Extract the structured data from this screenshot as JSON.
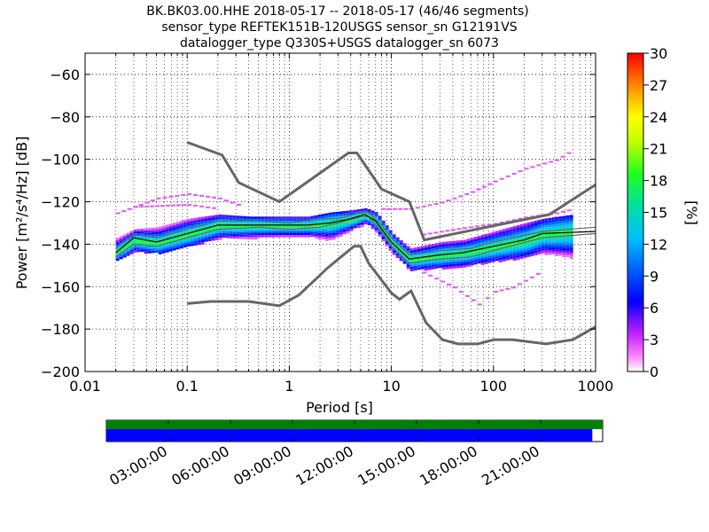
{
  "chart_data": {
    "type": "heatmap",
    "title_lines": [
      "BK.BK03.00.HHE   2018-05-17 -- 2018-05-17  (46/46 segments)",
      "sensor_type REFTEK151B-120USGS sensor_sn G12191VS",
      "datalogger_type Q330S+USGS datalogger_sn 6073"
    ],
    "xlabel": "Period [s]",
    "ylabel": "Power [m²/s⁴/Hz] [dB]",
    "x_scale": "log",
    "xlim": [
      0.01,
      1000
    ],
    "ylim": [
      -200,
      -50
    ],
    "x_ticks": [
      {
        "value": 0.01,
        "label": "0.01"
      },
      {
        "value": 0.1,
        "label": "0.1"
      },
      {
        "value": 1,
        "label": "1"
      },
      {
        "value": 10,
        "label": "10"
      },
      {
        "value": 100,
        "label": "100"
      },
      {
        "value": 1000,
        "label": "1000"
      }
    ],
    "y_ticks": [
      {
        "value": -60,
        "label": "−60"
      },
      {
        "value": -80,
        "label": "−80"
      },
      {
        "value": -100,
        "label": "−100"
      },
      {
        "value": -120,
        "label": "−120"
      },
      {
        "value": -140,
        "label": "−140"
      },
      {
        "value": -160,
        "label": "−160"
      },
      {
        "value": -180,
        "label": "−180"
      },
      {
        "value": -200,
        "label": "−200"
      }
    ],
    "grid": true,
    "colorbar": {
      "label": "[%]",
      "range": [
        0,
        30
      ],
      "ticks": [
        {
          "value": 0,
          "label": "0"
        },
        {
          "value": 3,
          "label": "3"
        },
        {
          "value": 6,
          "label": "6"
        },
        {
          "value": 9,
          "label": "9"
        },
        {
          "value": 12,
          "label": "12"
        },
        {
          "value": 15,
          "label": "15"
        },
        {
          "value": 18,
          "label": "18"
        },
        {
          "value": 21,
          "label": "21"
        },
        {
          "value": 24,
          "label": "24"
        },
        {
          "value": 27,
          "label": "27"
        },
        {
          "value": 30,
          "label": "30"
        }
      ]
    },
    "high_noise_model": [
      [
        0.1,
        -92
      ],
      [
        0.22,
        -98
      ],
      [
        0.32,
        -111
      ],
      [
        0.8,
        -120
      ],
      [
        3.8,
        -97
      ],
      [
        4.6,
        -97
      ],
      [
        8,
        -114
      ],
      [
        15,
        -120
      ],
      [
        21,
        -138
      ],
      [
        353,
        -126
      ],
      [
        1000,
        -112
      ]
    ],
    "low_noise_model": [
      [
        0.1,
        -168
      ],
      [
        0.17,
        -167
      ],
      [
        0.4,
        -167
      ],
      [
        0.8,
        -169
      ],
      [
        1.24,
        -164
      ],
      [
        2.4,
        -151
      ],
      [
        4.3,
        -141
      ],
      [
        5,
        -141
      ],
      [
        6,
        -149
      ],
      [
        10,
        -163
      ],
      [
        12,
        -166
      ],
      [
        15.6,
        -162
      ],
      [
        21.9,
        -177
      ],
      [
        31.6,
        -185
      ],
      [
        45,
        -187
      ],
      [
        70,
        -187
      ],
      [
        101,
        -185
      ],
      [
        154,
        -185
      ],
      [
        328,
        -187
      ],
      [
        600,
        -185
      ],
      [
        1000,
        -179
      ]
    ],
    "mode_curve": [
      [
        0.02,
        -144
      ],
      [
        0.03,
        -137
      ],
      [
        0.05,
        -139
      ],
      [
        0.1,
        -135
      ],
      [
        0.2,
        -131
      ],
      [
        0.4,
        -131
      ],
      [
        0.8,
        -131
      ],
      [
        1.5,
        -131
      ],
      [
        2.5,
        -130
      ],
      [
        4,
        -128
      ],
      [
        5.5,
        -126
      ],
      [
        7,
        -129
      ],
      [
        10,
        -139
      ],
      [
        15,
        -147
      ],
      [
        30,
        -145
      ],
      [
        50,
        -144
      ],
      [
        100,
        -141
      ],
      [
        200,
        -138
      ],
      [
        300,
        -135
      ],
      [
        1000,
        -134
      ]
    ],
    "percentile_curves": [
      [
        [
          0.02,
          -146
        ],
        [
          0.03,
          -140
        ],
        [
          0.05,
          -141
        ],
        [
          0.1,
          -137
        ],
        [
          0.2,
          -133
        ],
        [
          0.5,
          -132
        ],
        [
          1,
          -133
        ],
        [
          2,
          -132
        ],
        [
          3,
          -130
        ],
        [
          5,
          -127
        ],
        [
          6,
          -127
        ],
        [
          8,
          -134
        ],
        [
          10,
          -141
        ],
        [
          15,
          -149
        ],
        [
          30,
          -147
        ],
        [
          60,
          -146
        ],
        [
          100,
          -143
        ],
        [
          300,
          -137
        ],
        [
          1000,
          -135
        ]
      ],
      [
        [
          0.02,
          -142
        ],
        [
          0.03,
          -135
        ],
        [
          0.05,
          -137
        ],
        [
          0.1,
          -133
        ],
        [
          0.2,
          -129
        ],
        [
          0.5,
          -129
        ],
        [
          1,
          -130
        ],
        [
          2,
          -128
        ],
        [
          3,
          -128
        ],
        [
          5,
          -125
        ],
        [
          6,
          -125
        ],
        [
          8,
          -131
        ],
        [
          10,
          -137
        ],
        [
          15,
          -145
        ],
        [
          30,
          -143
        ],
        [
          60,
          -142
        ],
        [
          100,
          -139
        ],
        [
          300,
          -134
        ],
        [
          1000,
          -132
        ]
      ]
    ],
    "density_band": [
      {
        "x": 0.02,
        "lo": -147,
        "hi": -137,
        "peak": -143
      },
      {
        "x": 0.03,
        "lo": -143,
        "hi": -133,
        "peak": -138
      },
      {
        "x": 0.05,
        "lo": -144,
        "hi": -132,
        "peak": -139
      },
      {
        "x": 0.1,
        "lo": -141,
        "hi": -128,
        "peak": -135
      },
      {
        "x": 0.2,
        "lo": -137,
        "hi": -126,
        "peak": -131
      },
      {
        "x": 0.4,
        "lo": -137,
        "hi": -127,
        "peak": -131
      },
      {
        "x": 0.8,
        "lo": -136,
        "hi": -127,
        "peak": -131
      },
      {
        "x": 1.5,
        "lo": -136,
        "hi": -127,
        "peak": -131
      },
      {
        "x": 2.5,
        "lo": -138,
        "hi": -125,
        "peak": -130
      },
      {
        "x": 4,
        "lo": -133,
        "hi": -124,
        "peak": -128
      },
      {
        "x": 5.5,
        "lo": -130,
        "hi": -123,
        "peak": -126
      },
      {
        "x": 7,
        "lo": -134,
        "hi": -125,
        "peak": -129
      },
      {
        "x": 10,
        "lo": -144,
        "hi": -135,
        "peak": -139
      },
      {
        "x": 15,
        "lo": -152,
        "hi": -142,
        "peak": -147
      },
      {
        "x": 30,
        "lo": -151,
        "hi": -139,
        "peak": -145
      },
      {
        "x": 50,
        "lo": -150,
        "hi": -138,
        "peak": -144
      },
      {
        "x": 100,
        "lo": -148,
        "hi": -134,
        "peak": -141
      },
      {
        "x": 200,
        "lo": -146,
        "hi": -130,
        "peak": -138
      },
      {
        "x": 300,
        "lo": -144,
        "hi": -128,
        "peak": -135
      },
      {
        "x": 600,
        "lo": -146,
        "hi": -126,
        "peak": -134
      }
    ],
    "outlier_segments": [
      [
        [
          0.02,
          -125
        ],
        [
          0.05,
          -118
        ],
        [
          0.1,
          -116
        ],
        [
          0.2,
          -118
        ],
        [
          0.35,
          -122
        ]
      ],
      [
        [
          8,
          -123
        ],
        [
          15,
          -123
        ],
        [
          30,
          -120
        ],
        [
          60,
          -115
        ],
        [
          100,
          -110
        ],
        [
          200,
          -104
        ],
        [
          400,
          -100
        ],
        [
          600,
          -95
        ]
      ],
      [
        [
          20,
          -153
        ],
        [
          40,
          -160
        ],
        [
          70,
          -168
        ],
        [
          100,
          -162
        ],
        [
          150,
          -160
        ],
        [
          300,
          -152
        ]
      ],
      [
        [
          20,
          -135
        ],
        [
          50,
          -132
        ],
        [
          100,
          -130
        ],
        [
          200,
          -127
        ],
        [
          400,
          -125
        ],
        [
          600,
          -123
        ]
      ],
      [
        [
          0.03,
          -122
        ],
        [
          0.1,
          -121
        ],
        [
          0.2,
          -123
        ]
      ]
    ],
    "timeline": {
      "tick_labels": [
        "03:00:00",
        "06:00:00",
        "09:00:00",
        "12:00:00",
        "15:00:00",
        "18:00:00",
        "21:00:00"
      ],
      "tick_hours": [
        3,
        6,
        9,
        12,
        15,
        18,
        21
      ],
      "span_hours": [
        0,
        24
      ],
      "data_coverage_hours": [
        0,
        24
      ],
      "psd_coverage_hours": [
        0,
        23.5
      ],
      "data_color": "#008000",
      "psd_color": "#0000ff"
    },
    "colors": {
      "noise_models": "#666666",
      "mode": "#000000",
      "grid": "#000000"
    }
  }
}
